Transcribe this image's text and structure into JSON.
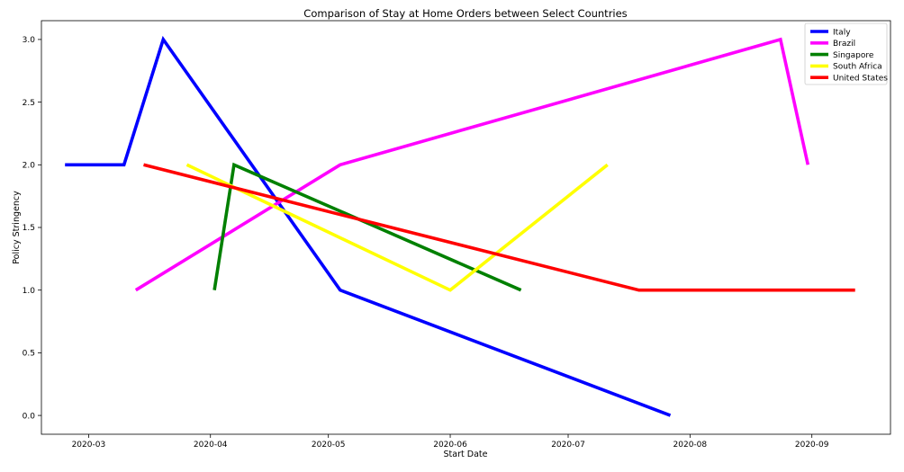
{
  "chart_data": {
    "type": "line",
    "title": "Comparison of Stay at Home Orders between Select Countries",
    "xlabel": "Start Date",
    "ylabel": "Policy Stringency",
    "x_type": "date",
    "xlim": [
      "2020-02-18",
      "2020-09-21"
    ],
    "ylim": [
      -0.15,
      3.15
    ],
    "x_ticks": [
      "2020-03-01",
      "2020-04-01",
      "2020-05-01",
      "2020-06-01",
      "2020-07-01",
      "2020-08-01",
      "2020-09-01"
    ],
    "x_tick_labels": [
      "2020-03",
      "2020-04",
      "2020-05",
      "2020-06",
      "2020-07",
      "2020-08",
      "2020-09"
    ],
    "y_ticks": [
      0.0,
      0.5,
      1.0,
      1.5,
      2.0,
      2.5,
      3.0
    ],
    "y_tick_labels": [
      "0.0",
      "0.5",
      "1.0",
      "1.5",
      "2.0",
      "2.5",
      "3.0"
    ],
    "grid": false,
    "legend_position": "top-right",
    "series": [
      {
        "name": "Italy",
        "color": "#0000ff",
        "points": [
          [
            "2020-02-24",
            2
          ],
          [
            "2020-03-10",
            2
          ],
          [
            "2020-03-20",
            3
          ],
          [
            "2020-05-04",
            1
          ],
          [
            "2020-07-27",
            0
          ]
        ]
      },
      {
        "name": "Brazil",
        "color": "#ff00ff",
        "points": [
          [
            "2020-03-13",
            1
          ],
          [
            "2020-05-04",
            2
          ],
          [
            "2020-08-24",
            3
          ],
          [
            "2020-08-31",
            2
          ]
        ]
      },
      {
        "name": "Singapore",
        "color": "#008000",
        "points": [
          [
            "2020-04-02",
            1
          ],
          [
            "2020-04-07",
            2
          ],
          [
            "2020-06-19",
            1
          ]
        ]
      },
      {
        "name": "South Africa",
        "color": "#ffff00",
        "points": [
          [
            "2020-03-26",
            2
          ],
          [
            "2020-06-01",
            1
          ],
          [
            "2020-07-11",
            2
          ]
        ]
      },
      {
        "name": "United States",
        "color": "#ff0000",
        "points": [
          [
            "2020-03-15",
            2
          ],
          [
            "2020-07-19",
            1
          ],
          [
            "2020-09-12",
            1
          ]
        ]
      }
    ]
  }
}
